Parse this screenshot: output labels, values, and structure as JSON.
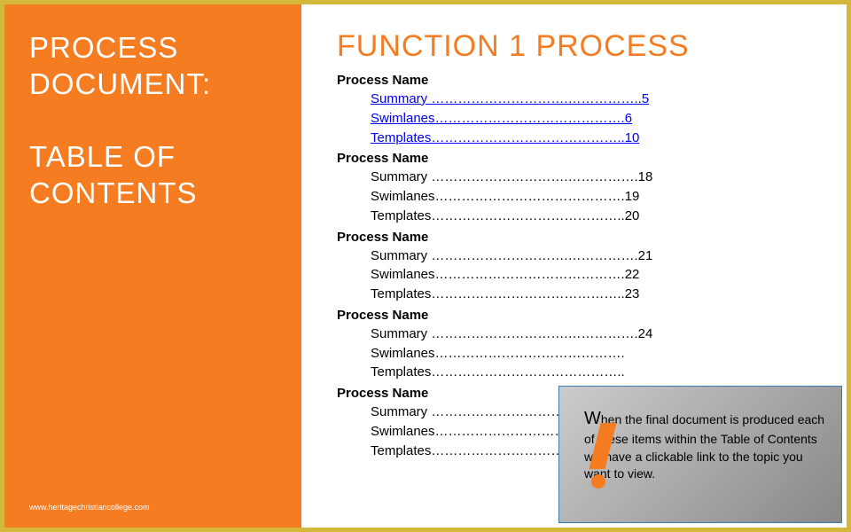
{
  "colors": {
    "accent": "#f57c21",
    "border": "#d4b83a",
    "link": "#0000ee",
    "callout_border": "#3a7db5",
    "callout_bg_start": "#cccccc",
    "callout_bg_end": "#888888",
    "white": "#ffffff",
    "black": "#000000"
  },
  "left": {
    "title_line1": "PROCESS",
    "title_line2": "DOCUMENT:",
    "subtitle_line1": "TABLE OF",
    "subtitle_line2": "CONTENTS",
    "attribution": "www.heritagechristiancollege.com"
  },
  "main": {
    "heading": "FUNCTION 1 PROCESS"
  },
  "processes": [
    {
      "header": "Process Name",
      "linked": true,
      "items": [
        {
          "label": "Summary ",
          "leader": "………………………….……………..",
          "page": "5"
        },
        {
          "label": "Swimlanes",
          "leader": "…………………………………….",
          "page": "6"
        },
        {
          "label": "Templates",
          "leader": "……………………………………..",
          "page": "10"
        }
      ]
    },
    {
      "header": "Process Name",
      "linked": false,
      "items": [
        {
          "label": "Summary ",
          "leader": "………………………….…………….",
          "page": "18"
        },
        {
          "label": "Swimlanes",
          "leader": "…………………………………….",
          "page": "19"
        },
        {
          "label": "Templates",
          "leader": "……………………………………..",
          "page": "20"
        }
      ]
    },
    {
      "header": "Process Name",
      "linked": false,
      "items": [
        {
          "label": "Summary ",
          "leader": "………………………….…………….",
          "page": "21"
        },
        {
          "label": "Swimlanes",
          "leader": "…………………………………….",
          "page": "22"
        },
        {
          "label": "Templates",
          "leader": "……………………………………..",
          "page": "23"
        }
      ]
    },
    {
      "header": "Process Name",
      "linked": false,
      "items": [
        {
          "label": "Summary ",
          "leader": "………………………….…………….",
          "page": "24"
        },
        {
          "label": "Swimlanes",
          "leader": "…………………………………….",
          "page": ""
        },
        {
          "label": "Templates",
          "leader": "……………………………………..",
          "page": ""
        }
      ]
    },
    {
      "header": "Process Name",
      "linked": false,
      "items": [
        {
          "label": "Summary ",
          "leader": "………………………….…………….",
          "page": ""
        },
        {
          "label": "Swimlanes",
          "leader": "…………………………………….",
          "page": ""
        },
        {
          "label": "Templates",
          "leader": "……………………………………..",
          "page": ""
        }
      ]
    }
  ],
  "callout": {
    "first_letter": "W",
    "rest": "hen the final document is produced each of these items within the Table of Contents will have a clickable link to the topic you want to view."
  }
}
